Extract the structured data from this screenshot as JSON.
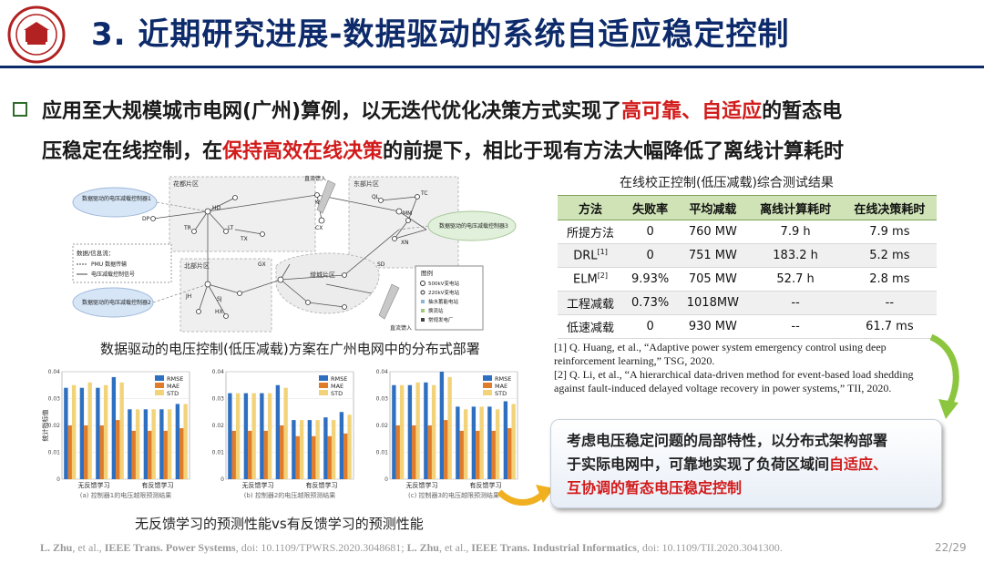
{
  "header": {
    "title": "3. 近期研究进展-数据驱动的系统自适应稳定控制",
    "logo_icon": "university-seal-icon"
  },
  "bullet": {
    "line1_a": "应用至大规模城市电网(广州)算例，以无迭代优化决策方式实现了",
    "line1_red1": "高可靠",
    "line1_sep": "、",
    "line1_red2": "自适应",
    "line1_b": "的暂态电",
    "line2_a": "压稳定在线控制，在",
    "line2_red": "保持高效在线决策",
    "line2_b": "的前提下，相比于现有方法大幅降低了离线计算耗时"
  },
  "map_figure": {
    "caption": "数据驱动的电压控制(低压减载)方案在广州电网中的分布式部署",
    "regions": [
      "花都片区",
      "北部片区",
      "增城片区",
      "东部片区"
    ],
    "cloud_left_top": "数据驱动的电压减载控制器1",
    "cloud_left_bottom": "数据驱动的电压减载控制器2",
    "cloud_right": "数据驱动的电压减载控制器3",
    "dc_feed_top": "直流馈入",
    "dc_feed_bottom": "直流馈入",
    "legend_info_title": "数据/信息流：",
    "legend_info_1": "PMU 数据传输",
    "legend_info_2": "电压减载控制信号",
    "legend_title": "图例",
    "legend_items": [
      "500kV变电站",
      "220kV变电站",
      "抽水蓄能电站",
      "换流站",
      "常规发电厂"
    ],
    "node_labels": [
      "HD",
      "DP",
      "TR",
      "LT",
      "TX",
      "KW",
      "CX",
      "QL",
      "TC",
      "XN",
      "MM",
      "JH",
      "SJ",
      "HX",
      "GX",
      "SD"
    ]
  },
  "bar_figure": {
    "caption": "无反馈学习的预测性能vs有反馈学习的预测性能",
    "ylabel": "统计指标值",
    "colors": {
      "RMSE": "#2f6fc0",
      "MAE": "#e07b2a",
      "STD": "#f2d37a"
    }
  },
  "chart_data": [
    {
      "type": "bar",
      "title": "(a) 控制器1的电压越限预测结果",
      "ylabel": "统计指标值",
      "ylim": [
        0,
        0.04
      ],
      "yticks": [
        "0",
        "0.01",
        "0.02",
        "0.03",
        "0.04"
      ],
      "group_labels": [
        "无反馈学习",
        "有反馈学习"
      ],
      "legend": [
        "RMSE",
        "MAE",
        "STD"
      ],
      "legend_position": "top-right",
      "series": [
        {
          "name": "RMSE",
          "values": [
            0.034,
            0.034,
            0.034,
            0.038,
            0.026,
            0.026,
            0.026,
            0.028
          ]
        },
        {
          "name": "MAE",
          "values": [
            0.02,
            0.02,
            0.02,
            0.022,
            0.018,
            0.018,
            0.018,
            0.019
          ]
        },
        {
          "name": "STD",
          "values": [
            0.035,
            0.036,
            0.035,
            0.036,
            0.026,
            0.026,
            0.026,
            0.028
          ]
        }
      ]
    },
    {
      "type": "bar",
      "title": "(b) 控制器2的电压越限预测结果",
      "ylabel": "",
      "ylim": [
        0,
        0.04
      ],
      "yticks": [
        "0",
        "0.01",
        "0.02",
        "0.03",
        "0.04"
      ],
      "group_labels": [
        "无反馈学习",
        "有反馈学习"
      ],
      "legend": [
        "RMSE",
        "MAE",
        "STD"
      ],
      "legend_position": "top-right",
      "series": [
        {
          "name": "RMSE",
          "values": [
            0.032,
            0.032,
            0.032,
            0.035,
            0.022,
            0.022,
            0.023,
            0.025
          ]
        },
        {
          "name": "MAE",
          "values": [
            0.018,
            0.018,
            0.018,
            0.02,
            0.016,
            0.016,
            0.016,
            0.017
          ]
        },
        {
          "name": "STD",
          "values": [
            0.032,
            0.032,
            0.032,
            0.034,
            0.022,
            0.022,
            0.022,
            0.024
          ]
        }
      ]
    },
    {
      "type": "bar",
      "title": "(c) 控制器3的电压越限预测结果",
      "ylabel": "",
      "ylim": [
        0,
        0.04
      ],
      "yticks": [
        "0",
        "0.01",
        "0.02",
        "0.03",
        "0.04"
      ],
      "group_labels": [
        "无反馈学习",
        "有反馈学习"
      ],
      "legend": [
        "RMSE",
        "MAE",
        "STD"
      ],
      "legend_position": "top-right",
      "series": [
        {
          "name": "RMSE",
          "values": [
            0.035,
            0.035,
            0.036,
            0.04,
            0.027,
            0.027,
            0.027,
            0.029
          ]
        },
        {
          "name": "MAE",
          "values": [
            0.02,
            0.02,
            0.02,
            0.022,
            0.018,
            0.018,
            0.018,
            0.019
          ]
        },
        {
          "name": "STD",
          "values": [
            0.035,
            0.036,
            0.035,
            0.038,
            0.026,
            0.027,
            0.026,
            0.028
          ]
        }
      ]
    }
  ],
  "table": {
    "title": "在线校正控制(低压减载)综合测试结果",
    "headers": [
      "方法",
      "失败率",
      "平均减载",
      "离线计算耗时",
      "在线决策耗时"
    ],
    "rows": [
      {
        "method": "所提方法",
        "sup": "",
        "fail": "0",
        "shed": "760 MW",
        "offline": "7.9 h",
        "online": "7.9 ms"
      },
      {
        "method": "DRL",
        "sup": "[1]",
        "fail": "0",
        "shed": "751 MW",
        "offline": "183.2 h",
        "online": "5.2 ms"
      },
      {
        "method": "ELM",
        "sup": "[2]",
        "fail": "9.93%",
        "shed": "705 MW",
        "offline": "52.7 h",
        "online": "2.8 ms"
      },
      {
        "method": "工程减载",
        "sup": "",
        "fail": "0.73%",
        "shed": "1018MW",
        "offline": "--",
        "online": "--"
      },
      {
        "method": "低速减载",
        "sup": "",
        "fail": "0",
        "shed": "930 MW",
        "offline": "--",
        "online": "61.7 ms"
      }
    ]
  },
  "references": {
    "ref1": "[1] Q. Huang, et al., “Adaptive power system emergency control using deep reinforcement learning,” TSG, 2020.",
    "ref2": "[2] Q. Li, et al., “A hierarchical data-driven method for event-based load shedding against fault-induced delayed voltage recovery in power systems,” TII, 2020."
  },
  "conclusion": {
    "line1": "考虑电压稳定问题的局部特性，以分布式架构部署",
    "line2_a": "于实际电网中，可靠地实现了负荷区域间",
    "line2_red": "自适应、",
    "line3_red": "互协调的暂态电压稳定控制"
  },
  "footer": {
    "cite_a": "L. Zhu",
    "cite_b": ", et al., ",
    "cite_c": "IEEE Trans. Power Systems",
    "cite_d": ", doi: 10.1109/TPWRS.2020.3048681; ",
    "cite_e": "L. Zhu",
    "cite_f": ", et al., ",
    "cite_g": "IEEE Trans. Industrial Informatics",
    "cite_h": ", doi: 10.1109/TII.2020.3041300.",
    "page": "22/29"
  }
}
